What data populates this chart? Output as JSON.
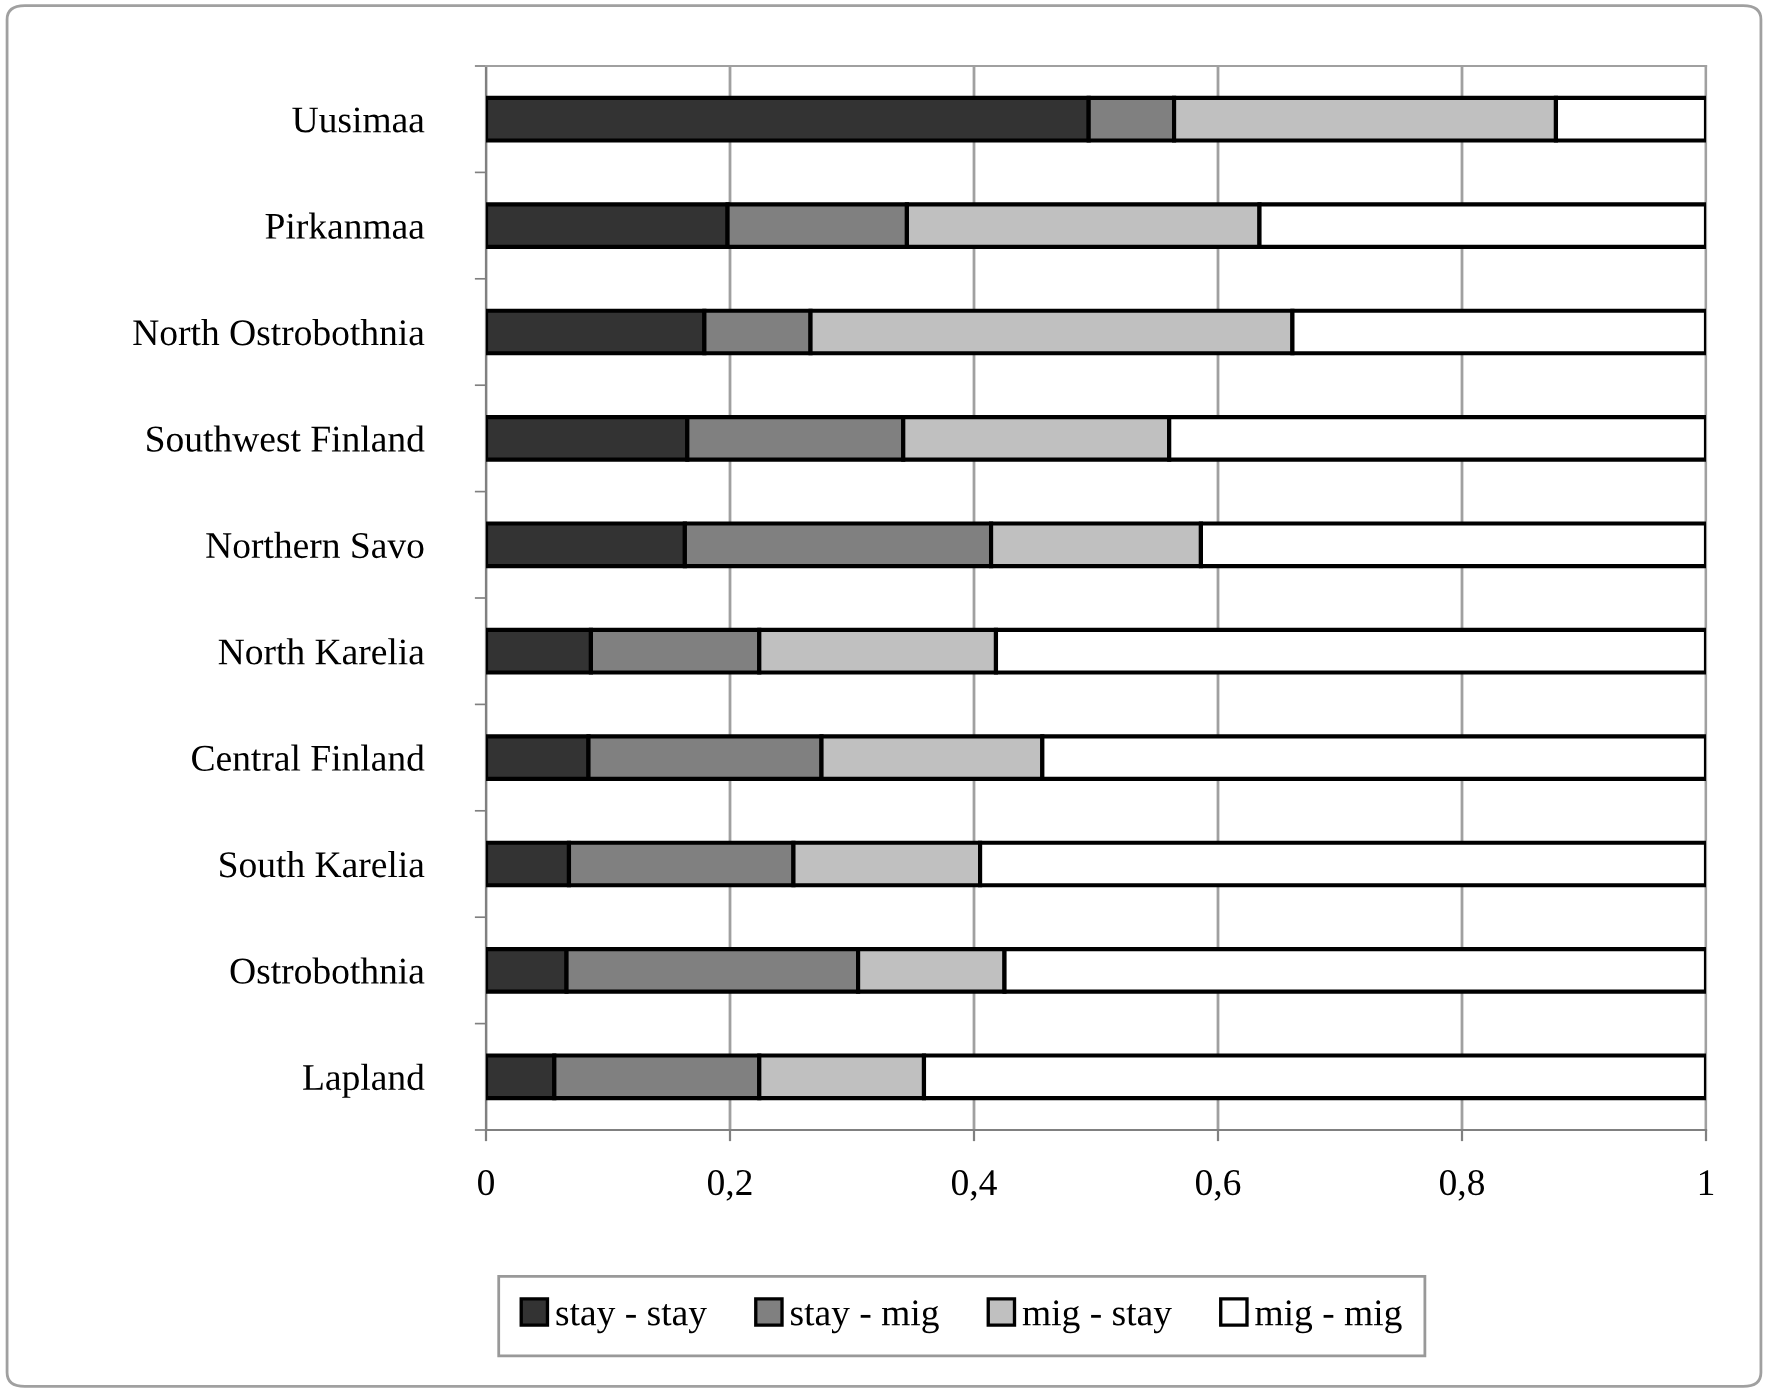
{
  "chart_data": {
    "type": "bar",
    "orientation": "horizontal",
    "stacked": true,
    "categories": [
      "Uusimaa",
      "Pirkanmaa",
      "North Ostrobothnia",
      "Southwest Finland",
      "Northern Savo",
      "North Karelia",
      "Central Finland",
      "South Karelia",
      "Ostrobothnia",
      "Lapland"
    ],
    "series": [
      {
        "name": "stay - stay",
        "color": "#333333",
        "values": [
          0.494,
          0.198,
          0.179,
          0.165,
          0.163,
          0.086,
          0.084,
          0.068,
          0.066,
          0.056
        ]
      },
      {
        "name": "stay - mig",
        "color": "#808080",
        "values": [
          0.07,
          0.147,
          0.087,
          0.177,
          0.251,
          0.138,
          0.191,
          0.184,
          0.239,
          0.168
        ]
      },
      {
        "name": "mig - stay",
        "color": "#c0c0c0",
        "values": [
          0.313,
          0.289,
          0.395,
          0.218,
          0.172,
          0.194,
          0.181,
          0.153,
          0.12,
          0.135
        ]
      },
      {
        "name": "mig - mig",
        "color": "#ffffff",
        "values": [
          0.123,
          0.366,
          0.339,
          0.44,
          0.414,
          0.582,
          0.544,
          0.595,
          0.575,
          0.641
        ]
      }
    ],
    "xlim": [
      0,
      1
    ],
    "xticks": [
      0,
      {
        "value": 0.2,
        "label": "0,2"
      },
      {
        "value": 0.4,
        "label": "0,4"
      },
      {
        "value": 0.6,
        "label": "0,6"
      },
      {
        "value": 0.8,
        "label": "0,8"
      },
      1
    ],
    "grid": "x",
    "legend": "bottom"
  }
}
